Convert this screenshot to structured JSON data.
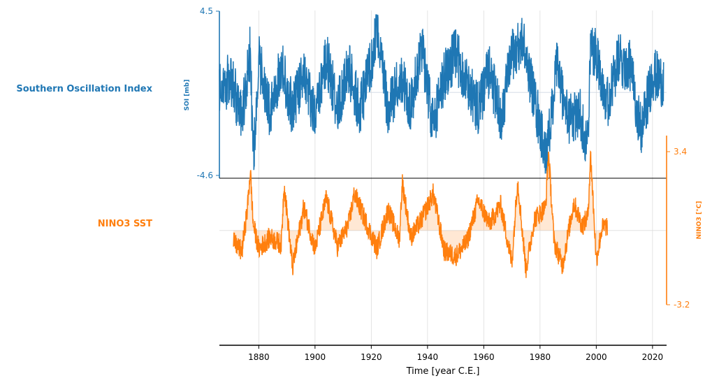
{
  "chart_data": [
    {
      "type": "line",
      "series": [
        {
          "name": "Southern Oscillation Index",
          "color": "#1f77b4"
        }
      ],
      "ylabel": "SOI [mb]",
      "ylim": [
        -4.6,
        4.5
      ],
      "yticks": [
        "4.5",
        "-4.6"
      ],
      "x_range": [
        1866,
        2025
      ],
      "sampled": {
        "x": [
          1866,
          1870,
          1874,
          1877,
          1878,
          1880,
          1884,
          1888,
          1892,
          1896,
          1900,
          1904,
          1908,
          1912,
          1916,
          1920,
          1922,
          1926,
          1930,
          1934,
          1938,
          1942,
          1946,
          1950,
          1954,
          1958,
          1962,
          1966,
          1970,
          1974,
          1978,
          1982,
          1983,
          1986,
          1990,
          1994,
          1997,
          1998,
          2000,
          2004,
          2008,
          2012,
          2016,
          2020,
          2024
        ],
        "y": [
          0.1,
          0.8,
          -1.5,
          2.4,
          -4.0,
          1.8,
          -1.2,
          1.5,
          -1.0,
          1.2,
          -1.6,
          2.0,
          -0.9,
          1.3,
          -1.0,
          1.6,
          3.9,
          -1.2,
          1.0,
          -0.8,
          2.6,
          -2.0,
          1.0,
          2.1,
          0.6,
          -1.0,
          1.3,
          -1.5,
          2.1,
          2.8,
          -0.4,
          -3.5,
          -2.8,
          1.5,
          -1.6,
          -1.1,
          -3.0,
          2.6,
          2.2,
          -0.6,
          1.8,
          1.4,
          -2.2,
          1.0,
          0.6
        ]
      }
    },
    {
      "type": "line",
      "series": [
        {
          "name": "NINO3 SST",
          "color": "#ff7f0e"
        }
      ],
      "ylabel": "NINO3 [°C]",
      "ylim": [
        -3.2,
        3.4
      ],
      "yticks": [
        "3.4",
        "-3.2"
      ],
      "x_range": [
        1871,
        2004
      ],
      "sampled": {
        "x": [
          1871,
          1874,
          1876,
          1877,
          1878,
          1880,
          1884,
          1888,
          1889,
          1892,
          1896,
          1900,
          1904,
          1908,
          1912,
          1914,
          1918,
          1922,
          1926,
          1930,
          1931,
          1934,
          1938,
          1942,
          1946,
          1950,
          1954,
          1958,
          1962,
          1966,
          1970,
          1972,
          1975,
          1978,
          1982,
          1983,
          1985,
          1988,
          1992,
          1995,
          1997,
          1998,
          2000,
          2002,
          2004
        ],
        "y": [
          -0.5,
          -0.9,
          1.0,
          2.6,
          0.3,
          -0.8,
          -0.3,
          -0.6,
          2.0,
          -1.6,
          1.0,
          -0.8,
          1.4,
          -0.7,
          0.3,
          1.6,
          0.4,
          -0.8,
          0.9,
          -0.4,
          2.1,
          -0.3,
          0.5,
          1.6,
          -0.9,
          -1.1,
          -0.5,
          1.3,
          0.3,
          1.1,
          -1.4,
          2.2,
          -1.7,
          0.5,
          1.0,
          3.4,
          -0.5,
          -1.5,
          1.2,
          0.2,
          0.6,
          3.3,
          -1.3,
          0.1,
          0.2
        ]
      }
    }
  ],
  "x_axis": {
    "label": "Time [year C.E.]",
    "ticks": [
      "1880",
      "1900",
      "1920",
      "1940",
      "1960",
      "1980",
      "2000",
      "2020"
    ],
    "range": [
      1866,
      2025
    ]
  },
  "grid": true
}
